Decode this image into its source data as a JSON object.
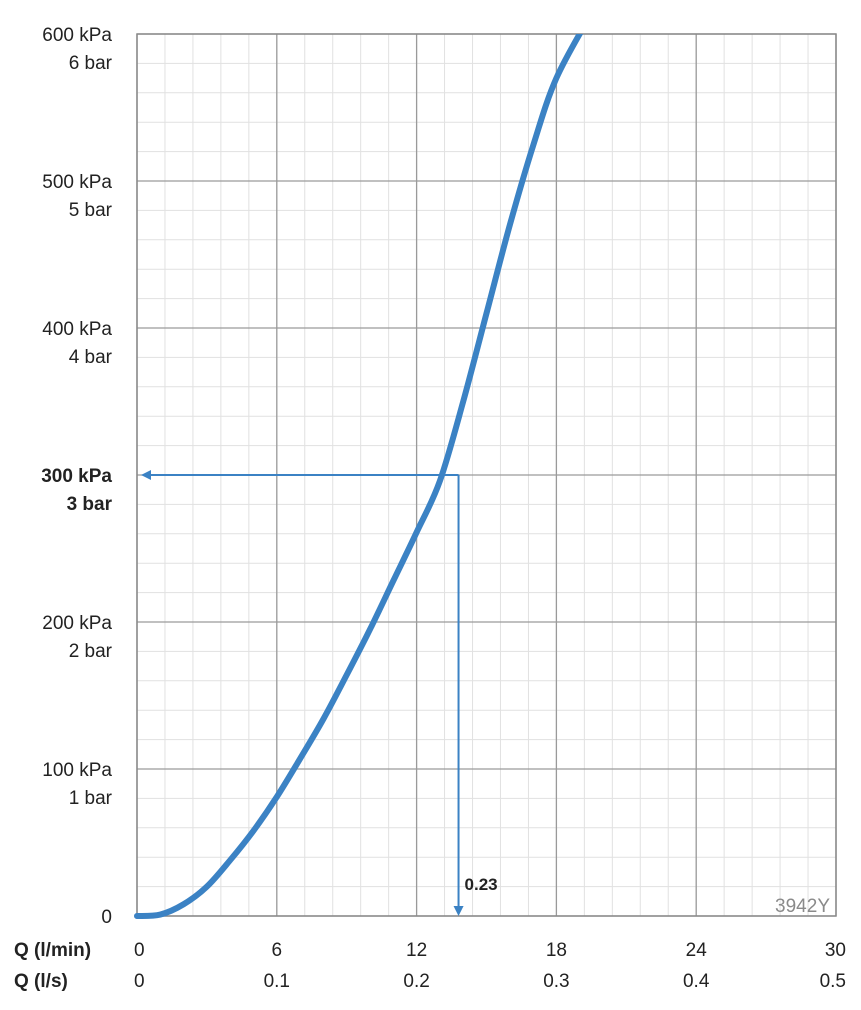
{
  "chart_data": {
    "type": "line",
    "watermark": "3942Y",
    "y_axis": {
      "unit_primary": "kPa",
      "unit_secondary": "bar",
      "range": [
        0,
        600
      ],
      "ticks": [
        {
          "value": 0,
          "kpa": "0",
          "bar": "",
          "bold": false
        },
        {
          "value": 100,
          "kpa": "100 kPa",
          "bar": "1 bar",
          "bold": false
        },
        {
          "value": 200,
          "kpa": "200 kPa",
          "bar": "2 bar",
          "bold": false
        },
        {
          "value": 300,
          "kpa": "300 kPa",
          "bar": "3 bar",
          "bold": true
        },
        {
          "value": 400,
          "kpa": "400 kPa",
          "bar": "4 bar",
          "bold": false
        },
        {
          "value": 500,
          "kpa": "500 kPa",
          "bar": "5 bar",
          "bold": false
        },
        {
          "value": 600,
          "kpa": "600 kPa",
          "bar": "6 bar",
          "bold": false
        }
      ],
      "minor_step": 20
    },
    "x_axis": {
      "range": [
        0,
        30
      ],
      "minor_step": 1.2,
      "label_lpm": "Q (l/min)",
      "label_ls": "Q (l/s)",
      "ticks": [
        {
          "value": 0,
          "lpm": "0",
          "ls": "0"
        },
        {
          "value": 6,
          "lpm": "6",
          "ls": "0.1"
        },
        {
          "value": 12,
          "lpm": "12",
          "ls": "0.2"
        },
        {
          "value": 18,
          "lpm": "18",
          "ls": "0.3"
        },
        {
          "value": 24,
          "lpm": "24",
          "ls": "0.4"
        },
        {
          "value": 30,
          "lpm": "30",
          "ls": "0.5"
        }
      ]
    },
    "series": [
      {
        "color": "#3b82c4",
        "points": [
          [
            0,
            0
          ],
          [
            1,
            1
          ],
          [
            2,
            8
          ],
          [
            3,
            20
          ],
          [
            4,
            38
          ],
          [
            5,
            58
          ],
          [
            6,
            81
          ],
          [
            7,
            107
          ],
          [
            8,
            134
          ],
          [
            9,
            164
          ],
          [
            10,
            195
          ],
          [
            11,
            228
          ],
          [
            12,
            261
          ],
          [
            13,
            296
          ],
          [
            14,
            350
          ],
          [
            15,
            410
          ],
          [
            16,
            470
          ],
          [
            17,
            524
          ],
          [
            18,
            570
          ],
          [
            19.5,
            614
          ]
        ]
      }
    ],
    "annotation": {
      "x": 13.8,
      "y": 300,
      "label": "0.23",
      "color": "#3b82c4"
    },
    "grid": true
  }
}
